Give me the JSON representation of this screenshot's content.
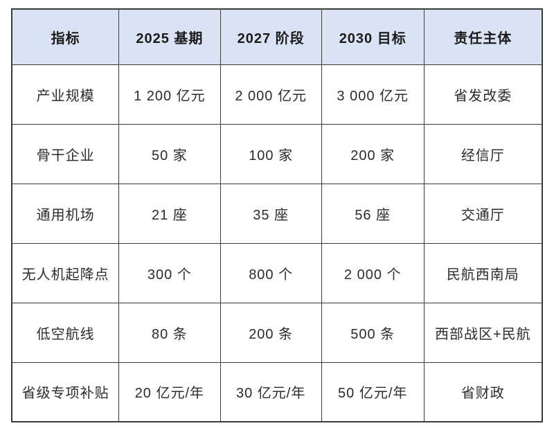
{
  "table": {
    "headers": [
      "指标",
      "2025 基期",
      "2027 阶段",
      "2030 目标",
      "责任主体"
    ],
    "rows": [
      [
        "产业规模",
        "1 200 亿元",
        "2 000 亿元",
        "3 000 亿元",
        "省发改委"
      ],
      [
        "骨干企业",
        "50 家",
        "100 家",
        "200 家",
        "经信厅"
      ],
      [
        "通用机场",
        "21 座",
        "35 座",
        "56 座",
        "交通厅"
      ],
      [
        "无人机起降点",
        "300 个",
        "800 个",
        "2 000 个",
        "民航西南局"
      ],
      [
        "低空航线",
        "80 条",
        "200 条",
        "500 条",
        "西部战区+民航"
      ],
      [
        "省级专项补贴",
        "20 亿元/年",
        "30 亿元/年",
        "50 亿元/年",
        "省财政"
      ]
    ]
  },
  "colors": {
    "header_bg": "#dae3f3",
    "border": "#3a3a3a",
    "header_text": "#1b1b1b",
    "body_text": "#2b2b2b",
    "page_bg": "#ffffff"
  }
}
